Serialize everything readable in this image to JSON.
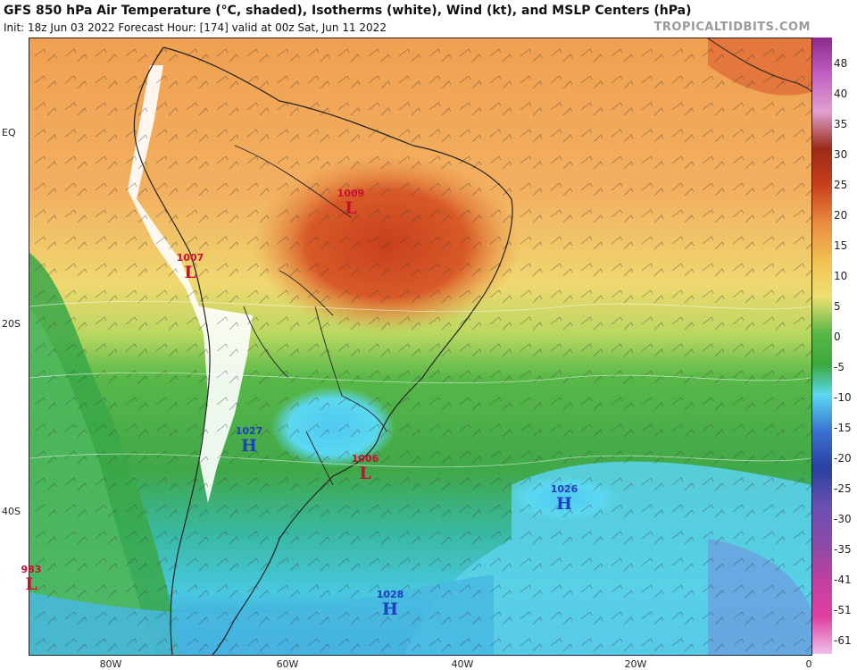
{
  "header": {
    "title": "GFS 850 hPa Air Temperature (°C, shaded), Isotherms (white), Wind (kt), and MSLP Centers (hPa)",
    "subtitle": "Init: 18z Jun 03 2022   Forecast Hour: [174]   valid at 00z Sat, Jun 11 2022",
    "credit": "TROPICALTIDBITS.COM"
  },
  "axes": {
    "lat_labels": [
      "EQ",
      "20S",
      "40S"
    ],
    "lon_labels": [
      "80W",
      "60W",
      "40W",
      "20W",
      "0"
    ]
  },
  "colorbar": {
    "labels": [
      "48",
      "40",
      "35",
      "30",
      "25",
      "20",
      "15",
      "10",
      "5",
      "0",
      "-5",
      "-10",
      "-15",
      "-20",
      "-25",
      "-30",
      "-35",
      "-41",
      "-51",
      "-61"
    ],
    "colors": {
      "warm_red": "#c8401c",
      "orange": "#ea8a40",
      "yellow": "#f0e070",
      "green": "#3aa83a",
      "cyan": "#5ad8f0",
      "blue": "#3a70d0",
      "purple": "#8a4aa8",
      "pink": "#e040a0"
    }
  },
  "pressure_centers": [
    {
      "kind": "L",
      "value": "1009",
      "color": "#c8102e"
    },
    {
      "kind": "L",
      "value": "1007",
      "color": "#c8102e"
    },
    {
      "kind": "H",
      "value": "1027",
      "color": "#1f3fbf"
    },
    {
      "kind": "L",
      "value": "1006",
      "color": "#c8102e"
    },
    {
      "kind": "H",
      "value": "1026",
      "color": "#1f3fbf"
    },
    {
      "kind": "H",
      "value": "1028",
      "color": "#1f3fbf"
    },
    {
      "kind": "L",
      "value": "983",
      "color": "#c8102e"
    }
  ]
}
